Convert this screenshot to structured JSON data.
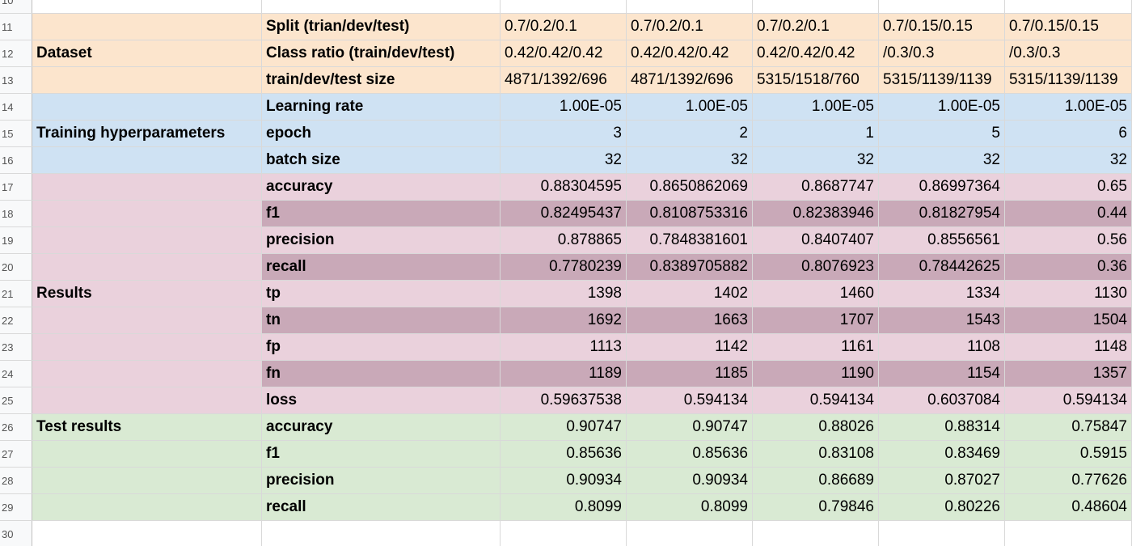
{
  "colors": {
    "dataset_bg": "#fce5cd",
    "training_bg": "#cfe2f3",
    "results_bg": "#ead1dc",
    "results_alt_bg": "#c9a9b8",
    "test_bg": "#d9ead3",
    "row_header_bg": "#f8f9fa"
  },
  "row_numbers": [
    "10",
    "11",
    "12",
    "13",
    "14",
    "15",
    "16",
    "17",
    "18",
    "19",
    "20",
    "21",
    "22",
    "23",
    "24",
    "25",
    "26",
    "27",
    "28",
    "29",
    "30"
  ],
  "rows": [
    {
      "num": "10",
      "cat": "",
      "metric": "",
      "values": [
        "",
        "",
        "",
        "",
        ""
      ],
      "bg": "white"
    },
    {
      "num": "11",
      "cat": "",
      "metric": "Split (trian/dev/test)",
      "values": [
        "0.7/0.2/0.1",
        "0.7/0.2/0.1",
        "0.7/0.2/0.1",
        "0.7/0.15/0.15",
        "0.7/0.15/0.15"
      ],
      "bg": "peach"
    },
    {
      "num": "12",
      "cat": "Dataset",
      "metric": "Class ratio (train/dev/test)",
      "values": [
        "0.42/0.42/0.42",
        "0.42/0.42/0.42",
        "0.42/0.42/0.42",
        "/0.3/0.3",
        "/0.3/0.3"
      ],
      "bg": "peach"
    },
    {
      "num": "13",
      "cat": "",
      "metric": "train/dev/test size",
      "values": [
        "4871/1392/696",
        "4871/1392/696",
        "5315/1518/760",
        "5315/1139/1139",
        "5315/1139/1139"
      ],
      "bg": "peach"
    },
    {
      "num": "14",
      "cat": "",
      "metric": "Learning rate",
      "values": [
        "1.00E-05",
        "1.00E-05",
        "1.00E-05",
        "1.00E-05",
        "1.00E-05"
      ],
      "bg": "blue"
    },
    {
      "num": "15",
      "cat": "Training hyperparameters",
      "metric": "epoch",
      "values": [
        "3",
        "2",
        "1",
        "5",
        "6"
      ],
      "bg": "blue"
    },
    {
      "num": "16",
      "cat": "",
      "metric": "batch size",
      "values": [
        "32",
        "32",
        "32",
        "32",
        "32"
      ],
      "bg": "blue"
    },
    {
      "num": "17",
      "cat": "",
      "metric": "accuracy",
      "values": [
        "0.88304595",
        "0.8650862069",
        "0.8687747",
        "0.86997364",
        "0.65"
      ],
      "bg": "pink"
    },
    {
      "num": "18",
      "cat": "",
      "metric": "f1",
      "values": [
        "0.82495437",
        "0.8108753316",
        "0.82383946",
        "0.81827954",
        "0.44"
      ],
      "bg": "pinkdark"
    },
    {
      "num": "19",
      "cat": "",
      "metric": "precision",
      "values": [
        "0.878865",
        "0.7848381601",
        "0.8407407",
        "0.8556561",
        "0.56"
      ],
      "bg": "pink"
    },
    {
      "num": "20",
      "cat": "",
      "metric": "recall",
      "values": [
        "0.7780239",
        "0.8389705882",
        "0.8076923",
        "0.78442625",
        "0.36"
      ],
      "bg": "pinkdark"
    },
    {
      "num": "21",
      "cat": "Results",
      "metric": "tp",
      "values": [
        "1398",
        "1402",
        "1460",
        "1334",
        "1130"
      ],
      "bg": "pink"
    },
    {
      "num": "22",
      "cat": "",
      "metric": "tn",
      "values": [
        "1692",
        "1663",
        "1707",
        "1543",
        "1504"
      ],
      "bg": "pinkdark"
    },
    {
      "num": "23",
      "cat": "",
      "metric": "fp",
      "values": [
        "1113",
        "1142",
        "1161",
        "1108",
        "1148"
      ],
      "bg": "pink"
    },
    {
      "num": "24",
      "cat": "",
      "metric": "fn",
      "values": [
        "1189",
        "1185",
        "1190",
        "1154",
        "1357"
      ],
      "bg": "pinkdark"
    },
    {
      "num": "25",
      "cat": "",
      "metric": "loss",
      "values": [
        "0.59637538",
        "0.594134",
        "0.594134",
        "0.6037084",
        "0.594134"
      ],
      "bg": "pink"
    },
    {
      "num": "26",
      "cat": "Test results",
      "metric": "accuracy",
      "values": [
        "0.90747",
        "0.90747",
        "0.88026",
        "0.88314",
        "0.75847"
      ],
      "bg": "green"
    },
    {
      "num": "27",
      "cat": "",
      "metric": "f1",
      "values": [
        "0.85636",
        "0.85636",
        "0.83108",
        "0.83469",
        "0.5915"
      ],
      "bg": "green"
    },
    {
      "num": "28",
      "cat": "",
      "metric": "precision",
      "values": [
        "0.90934",
        "0.90934",
        "0.86689",
        "0.87027",
        "0.77626"
      ],
      "bg": "green"
    },
    {
      "num": "29",
      "cat": "",
      "metric": "recall",
      "values": [
        "0.8099",
        "0.8099",
        "0.79846",
        "0.80226",
        "0.48604"
      ],
      "bg": "green"
    },
    {
      "num": "30",
      "cat": "",
      "metric": "",
      "values": [
        "",
        "",
        "",
        "",
        ""
      ],
      "bg": "white"
    }
  ]
}
